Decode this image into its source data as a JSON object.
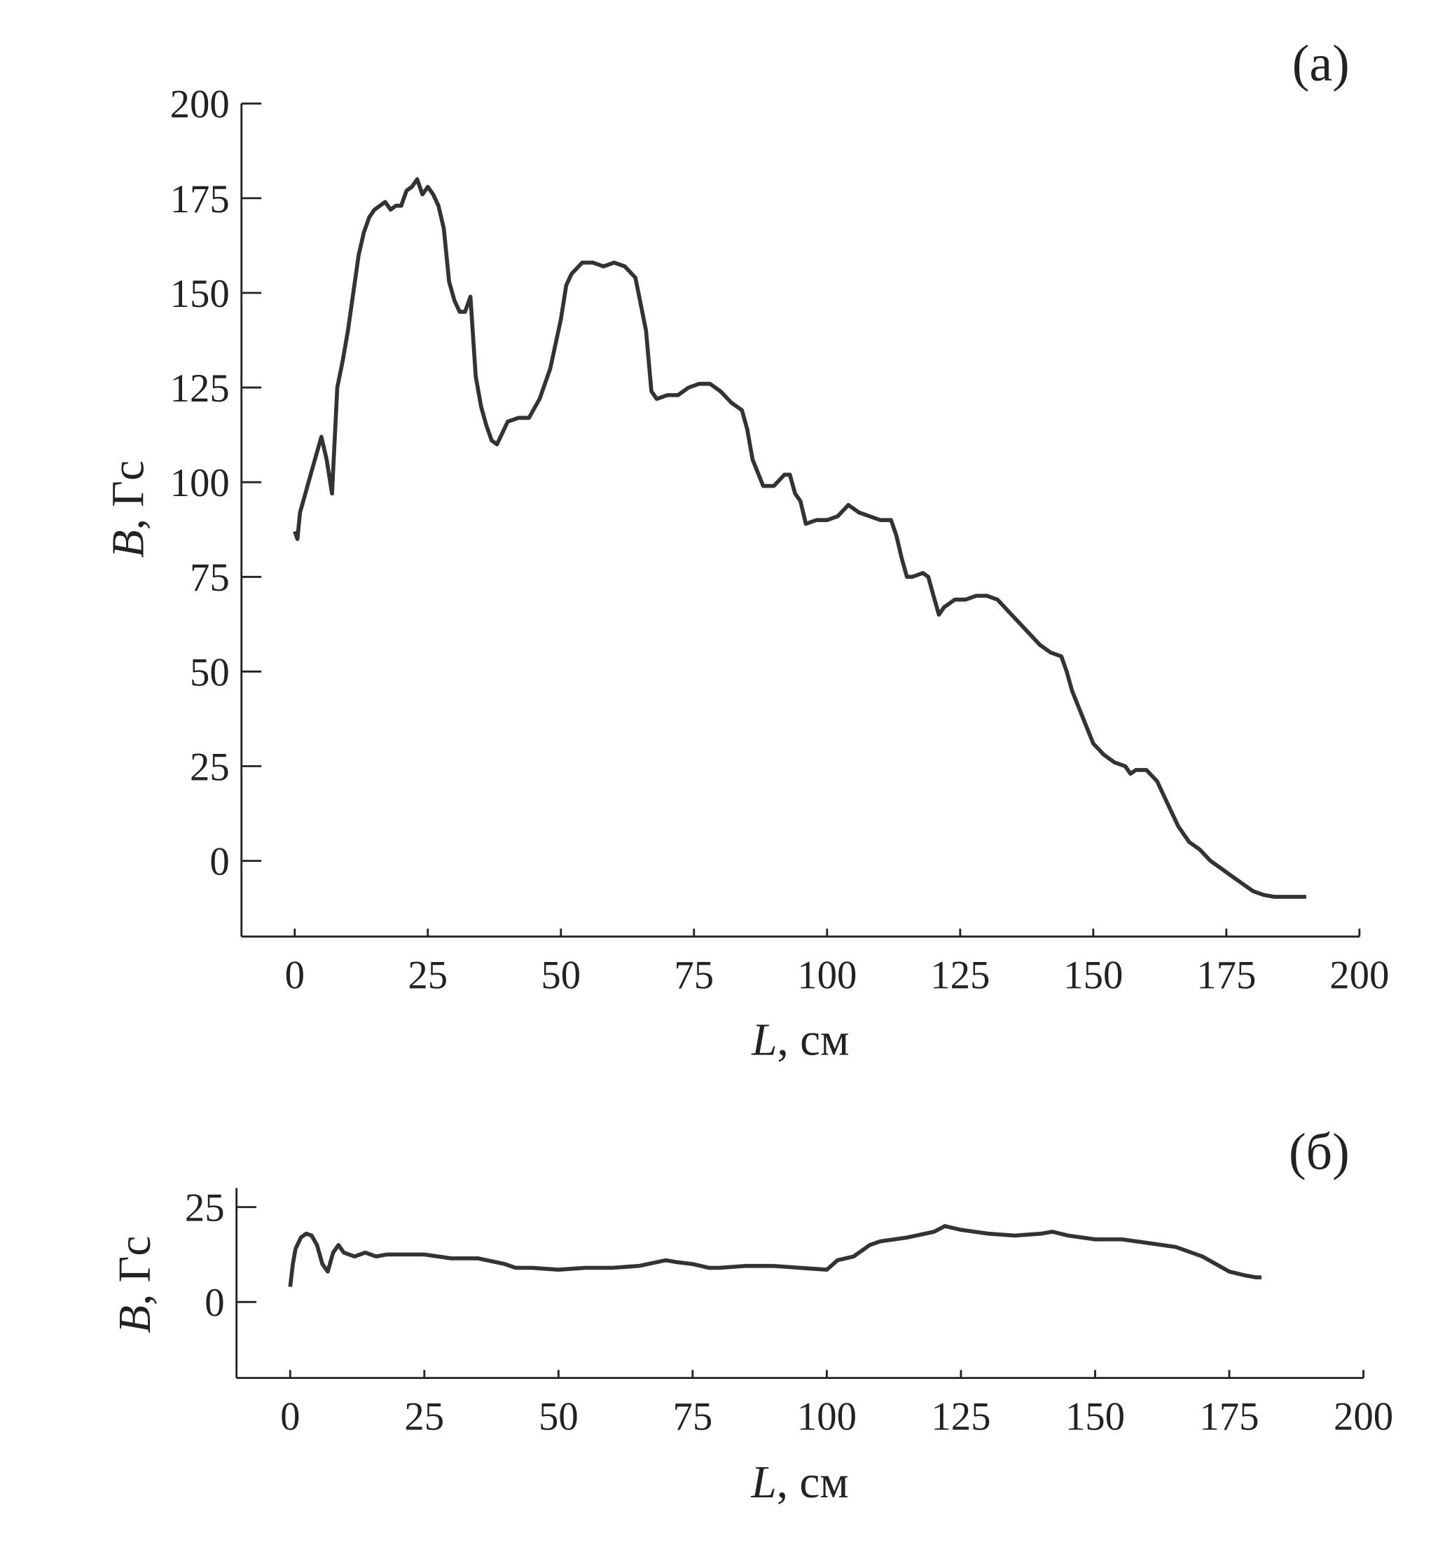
{
  "chart_data": [
    {
      "type": "line",
      "label": "(a)",
      "xlabel": "L, см",
      "ylabel": "B, Гс",
      "color": "#333333",
      "xlim": [
        -10,
        200
      ],
      "xticks": [
        0,
        25,
        50,
        75,
        100,
        125,
        150,
        175,
        200
      ],
      "ylim": [
        -20,
        200
      ],
      "yticks": [
        0,
        25,
        50,
        75,
        100,
        125,
        150,
        175,
        200
      ],
      "x": [
        0,
        0.5,
        1,
        2,
        3,
        4,
        5,
        6,
        7,
        8,
        9,
        10,
        11,
        12,
        13,
        14,
        15,
        16,
        17,
        18,
        19,
        20,
        21,
        22,
        23,
        24,
        25,
        26,
        27,
        28,
        29,
        30,
        31,
        32,
        33,
        34,
        35,
        36,
        37,
        38,
        39,
        40,
        42,
        44,
        46,
        48,
        50,
        51,
        52,
        54,
        56,
        58,
        60,
        62,
        64,
        66,
        67,
        68,
        70,
        72,
        74,
        76,
        78,
        80,
        82,
        84,
        85,
        86,
        88,
        90,
        92,
        93,
        94,
        95,
        96,
        98,
        100,
        102,
        104,
        106,
        108,
        110,
        112,
        113,
        114,
        115,
        116,
        118,
        119,
        120,
        121,
        122,
        124,
        126,
        128,
        130,
        132,
        134,
        136,
        138,
        140,
        142,
        144,
        145,
        146,
        148,
        150,
        152,
        154,
        156,
        157,
        158,
        160,
        162,
        164,
        166,
        168,
        170,
        172,
        174,
        176,
        178,
        180,
        182,
        184,
        186,
        188,
        190
      ],
      "values": [
        87,
        85,
        92,
        97,
        102,
        107,
        112,
        106,
        97,
        125,
        132,
        140,
        150,
        160,
        166,
        170,
        172,
        173,
        174,
        172,
        173,
        173,
        177,
        178,
        180,
        176,
        178,
        176,
        173,
        167,
        153,
        148,
        145,
        145,
        149,
        128,
        120,
        115,
        111,
        110,
        113,
        116,
        117,
        117,
        122,
        130,
        143,
        152,
        155,
        158,
        158,
        157,
        158,
        157,
        154,
        140,
        124,
        122,
        123,
        123,
        125,
        126,
        126,
        124,
        121,
        119,
        114,
        106,
        99,
        99,
        102,
        102,
        97,
        95,
        89,
        90,
        90,
        91,
        94,
        92,
        91,
        90,
        90,
        86,
        80,
        75,
        75,
        76,
        75,
        70,
        65,
        67,
        69,
        69,
        70,
        70,
        69,
        66,
        63,
        60,
        57,
        55,
        54,
        50,
        45,
        38,
        31,
        28,
        26,
        25,
        23,
        24,
        24,
        21,
        15,
        9,
        5,
        3,
        0,
        -2,
        -4,
        -6,
        -8,
        -9,
        -9.5,
        -9.5,
        -9.5,
        -9.5
      ]
    },
    {
      "type": "line",
      "label": "(б)",
      "xlabel": "L, см",
      "ylabel": "B, Гс",
      "color": "#333333",
      "xlim": [
        -10,
        200
      ],
      "xticks": [
        0,
        25,
        50,
        75,
        100,
        125,
        150,
        175,
        200
      ],
      "ylim": [
        -20,
        30
      ],
      "yticks": [
        0,
        25
      ],
      "x": [
        0,
        0.5,
        1,
        2,
        3,
        4,
        5,
        6,
        7,
        8,
        9,
        10,
        12,
        14,
        16,
        18,
        20,
        25,
        30,
        35,
        40,
        42,
        45,
        50,
        55,
        60,
        65,
        70,
        72,
        75,
        78,
        80,
        85,
        90,
        95,
        100,
        102,
        105,
        108,
        110,
        115,
        120,
        122,
        125,
        130,
        135,
        140,
        142,
        145,
        150,
        155,
        160,
        165,
        170,
        175,
        178,
        180,
        181
      ],
      "values": [
        4,
        10,
        14,
        17,
        18,
        17.5,
        15,
        10,
        8,
        13,
        15,
        13,
        12,
        13,
        12,
        12.5,
        12.5,
        12.5,
        11.5,
        11.5,
        10,
        9,
        9,
        8.5,
        9,
        9,
        9.5,
        11,
        10.5,
        10,
        9,
        9,
        9.5,
        9.5,
        9,
        8.5,
        11,
        12,
        15,
        16,
        17,
        18.5,
        20,
        19,
        18,
        17.5,
        18,
        18.5,
        17.5,
        16.5,
        16.5,
        15.5,
        14.5,
        12,
        8,
        7,
        6.5,
        6.5
      ]
    }
  ]
}
